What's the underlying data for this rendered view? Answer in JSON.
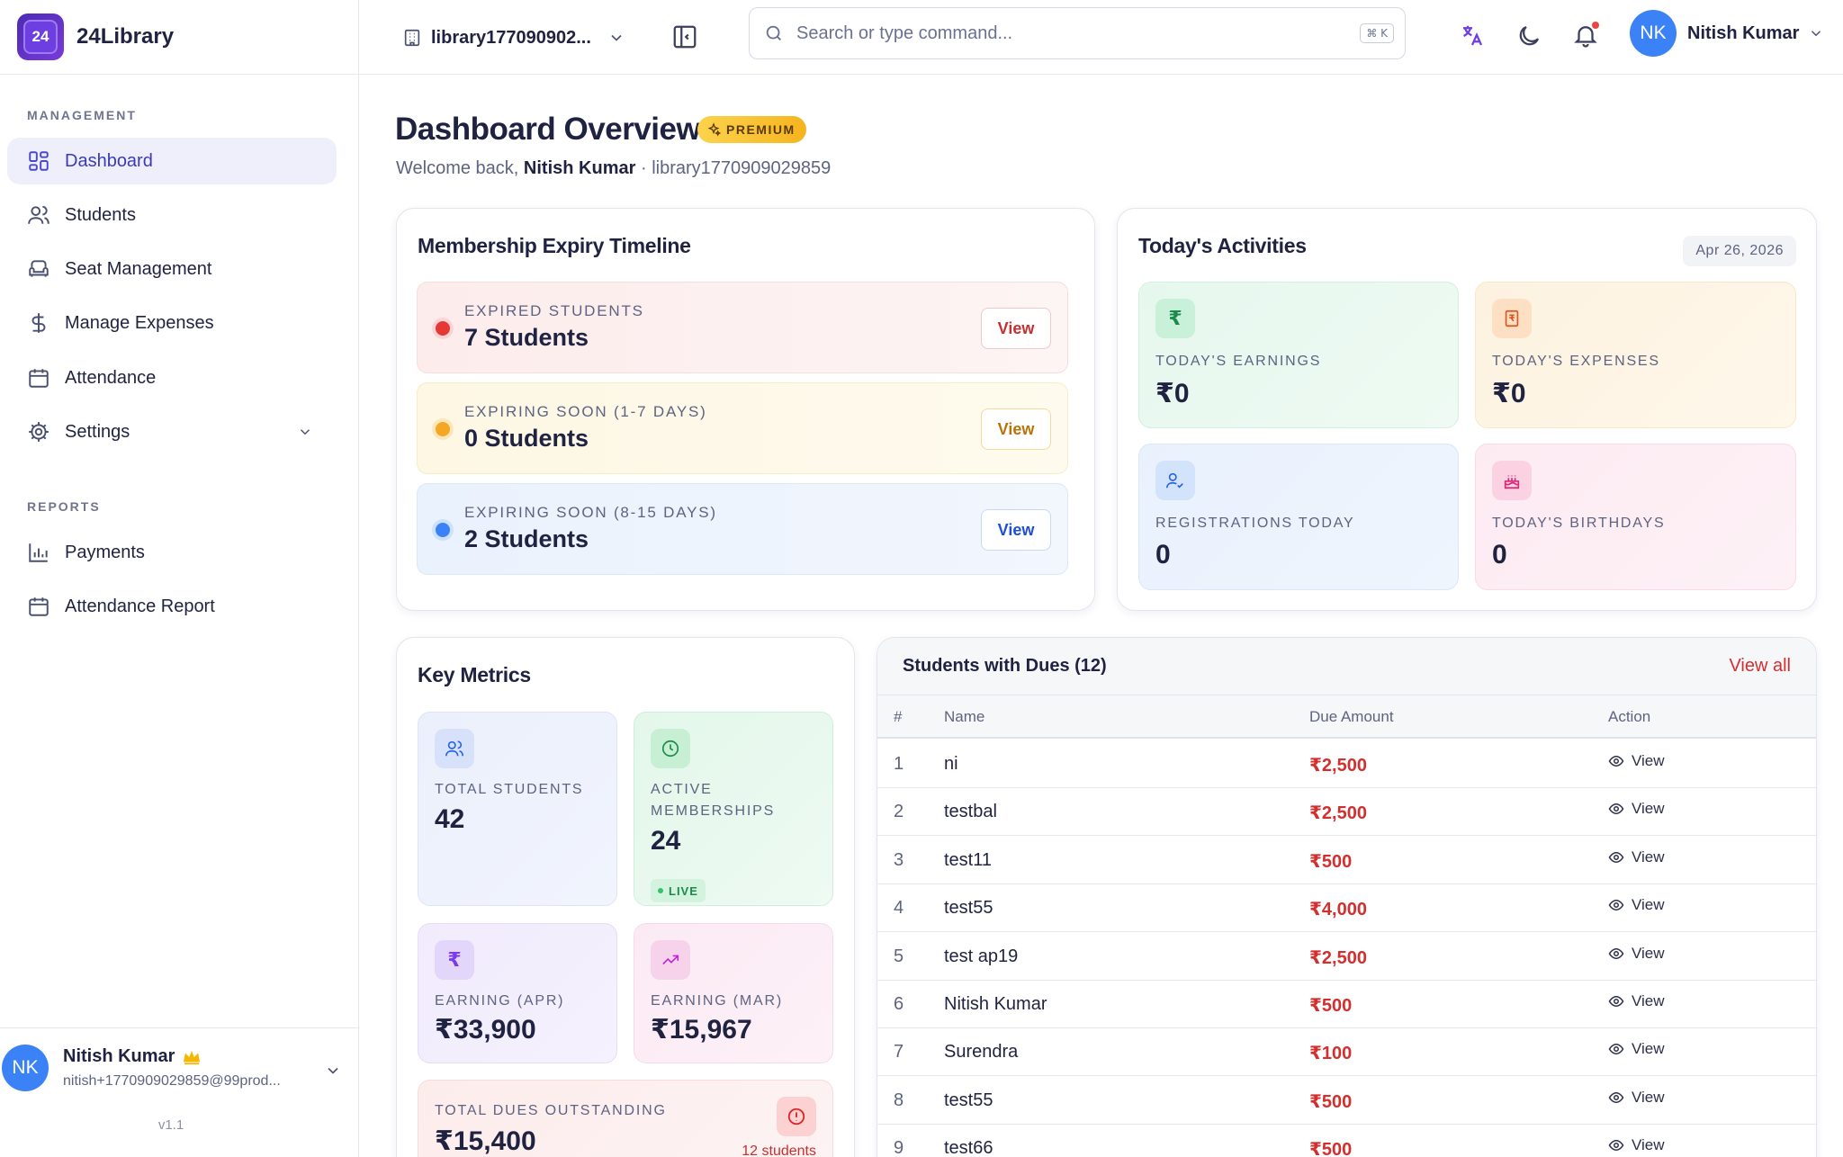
{
  "brand": {
    "name": "24Library",
    "logo_text": "24"
  },
  "sidebar": {
    "sections": [
      {
        "label": "MANAGEMENT"
      },
      {
        "label": "REPORTS"
      }
    ],
    "items": [
      {
        "label": "Dashboard",
        "icon": "dashboard-icon",
        "active": true
      },
      {
        "label": "Students",
        "icon": "users-icon"
      },
      {
        "label": "Seat Management",
        "icon": "armchair-icon"
      },
      {
        "label": "Manage Expenses",
        "icon": "dollar-icon"
      },
      {
        "label": "Attendance",
        "icon": "calendar-icon"
      },
      {
        "label": "Settings",
        "icon": "gear-icon"
      },
      {
        "label": "Payments",
        "icon": "bar-chart-icon"
      },
      {
        "label": "Attendance Report",
        "icon": "calendar-icon"
      }
    ],
    "user": {
      "initials": "NK",
      "name": "Nitish Kumar",
      "email": "nitish+1770909029859@99prod...",
      "version": "v1.1"
    }
  },
  "topbar": {
    "library": "library177090902...",
    "search_placeholder": "Search or type command...",
    "shortcut": "⌘ K",
    "user_initials": "NK",
    "user_name": "Nitish Kumar"
  },
  "header": {
    "title": "Dashboard Overview",
    "badge": "PREMIUM",
    "welcome_prefix": "Welcome back,",
    "welcome_name": "Nitish Kumar",
    "separator": "·",
    "library_id": "library1770909029859"
  },
  "expiry": {
    "title": "Membership Expiry Timeline",
    "rows": [
      {
        "label": "EXPIRED STUDENTS",
        "value": "7 Students",
        "button": "View",
        "color": "#e53935"
      },
      {
        "label": "EXPIRING SOON (1-7 DAYS)",
        "value": "0 Students",
        "button": "View",
        "color": "#f5a623"
      },
      {
        "label": "EXPIRING SOON (8-15 DAYS)",
        "value": "2 Students",
        "button": "View",
        "color": "#3b82f6"
      }
    ]
  },
  "activities": {
    "title": "Today's Activities",
    "date": "Apr 26, 2026",
    "tiles": [
      {
        "label": "TODAY'S EARNINGS",
        "value": "₹0",
        "icon": "rupee-icon"
      },
      {
        "label": "TODAY'S EXPENSES",
        "value": "₹0",
        "icon": "receipt-icon"
      },
      {
        "label": "REGISTRATIONS TODAY",
        "value": "0",
        "icon": "user-check-icon"
      },
      {
        "label": "TODAY'S BIRTHDAYS",
        "value": "0",
        "icon": "cake-icon"
      }
    ]
  },
  "metrics": {
    "title": "Key Metrics",
    "tiles": [
      {
        "label": "TOTAL STUDENTS",
        "value": "42",
        "icon": "users-icon"
      },
      {
        "label": "ACTIVE MEMBERSHIPS",
        "value": "24",
        "icon": "clock-icon",
        "badge": "LIVE"
      },
      {
        "label": "EARNING (APR)",
        "value": "₹33,900",
        "icon": "rupee-icon"
      },
      {
        "label": "EARNING (MAR)",
        "value": "₹15,967",
        "icon": "trending-up-icon"
      }
    ],
    "dues": {
      "label": "TOTAL DUES OUTSTANDING",
      "value": "₹15,400",
      "count": "12 students",
      "icon": "alert-circle-icon"
    }
  },
  "dues_table": {
    "title": "Students with Dues (12)",
    "view_all": "View all",
    "columns": [
      "#",
      "Name",
      "Due Amount",
      "Action"
    ],
    "rows": [
      {
        "idx": "1",
        "name": "ni",
        "amount": "₹2,500",
        "action": "View"
      },
      {
        "idx": "2",
        "name": "testbal",
        "amount": "₹2,500",
        "action": "View"
      },
      {
        "idx": "3",
        "name": "test11",
        "amount": "₹500",
        "action": "View"
      },
      {
        "idx": "4",
        "name": "test55",
        "amount": "₹4,000",
        "action": "View"
      },
      {
        "idx": "5",
        "name": "test ap19",
        "amount": "₹2,500",
        "action": "View"
      },
      {
        "idx": "6",
        "name": "Nitish Kumar",
        "amount": "₹500",
        "action": "View"
      },
      {
        "idx": "7",
        "name": "Surendra",
        "amount": "₹100",
        "action": "View"
      },
      {
        "idx": "8",
        "name": "test55",
        "amount": "₹500",
        "action": "View"
      },
      {
        "idx": "9",
        "name": "test66",
        "amount": "₹500",
        "action": "View"
      }
    ]
  }
}
